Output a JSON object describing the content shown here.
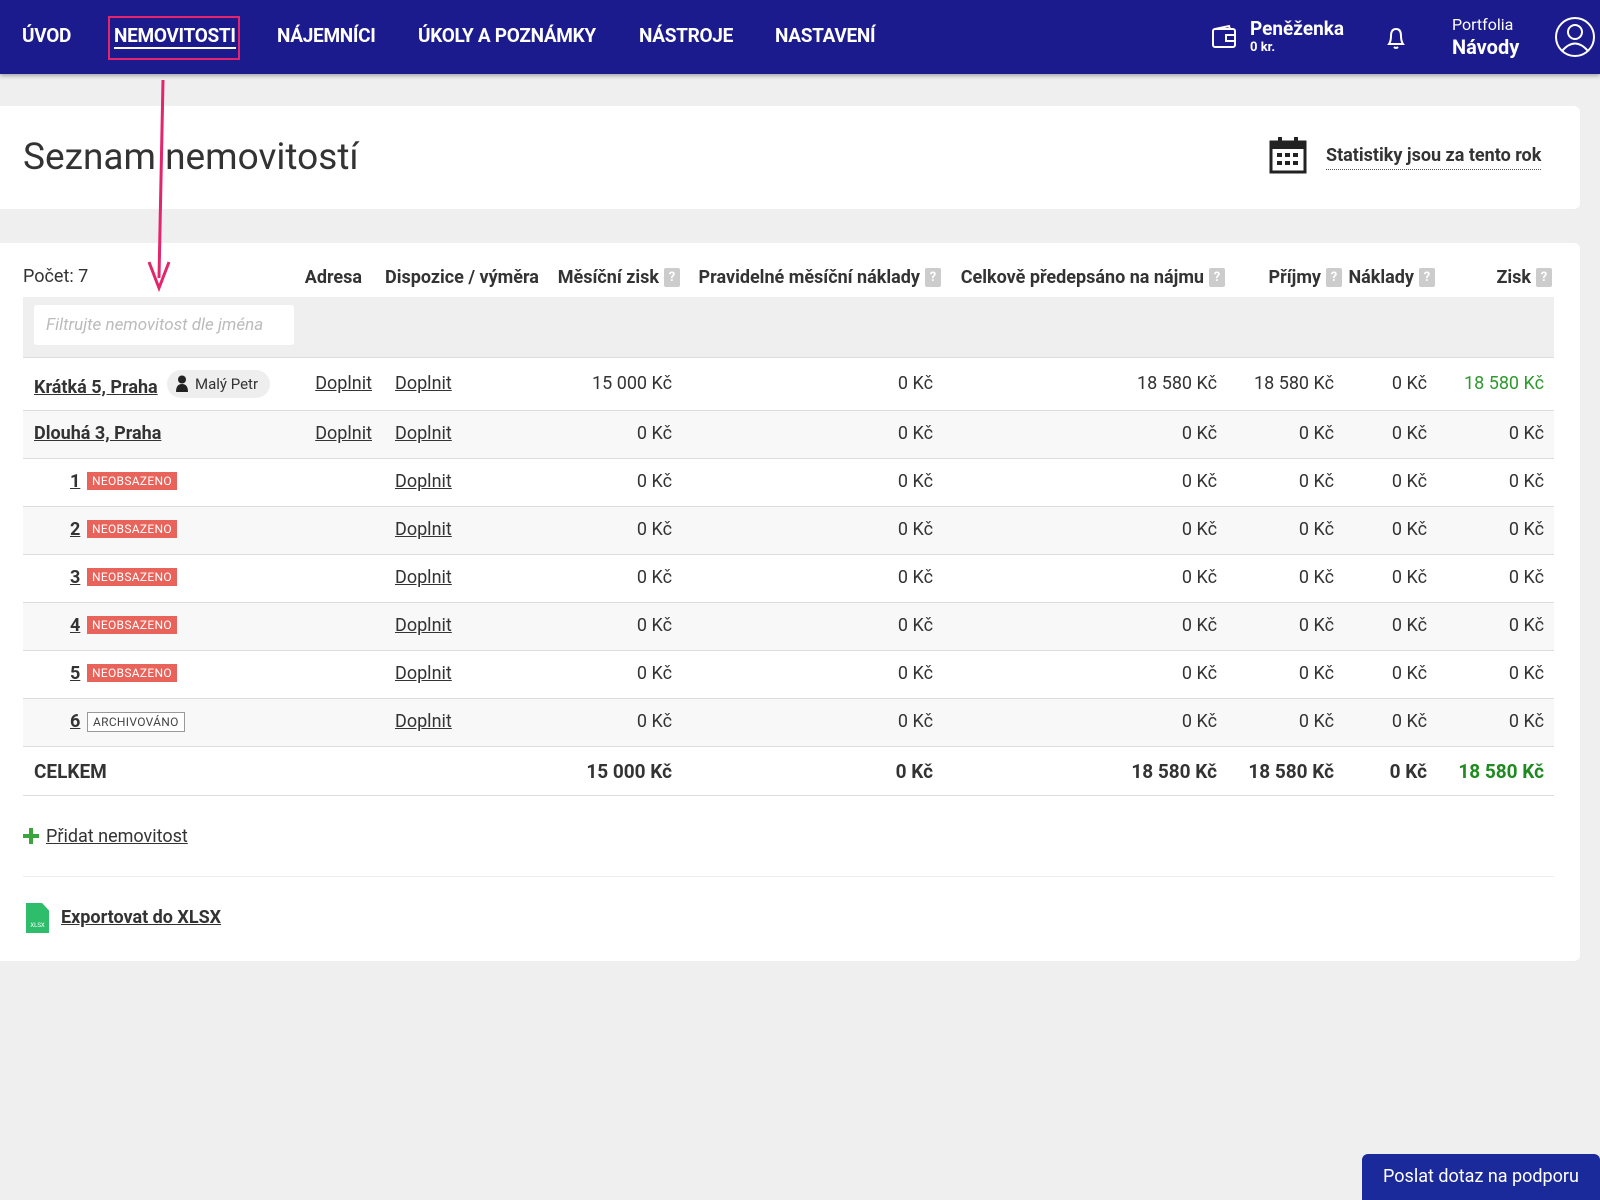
{
  "nav": {
    "items": [
      "ÚVOD",
      "NEMOVITOSTI",
      "NÁJEMNÍCI",
      "ÚKOLY A POZNÁMKY",
      "NÁSTROJE",
      "NASTAVENÍ"
    ],
    "active": 1,
    "wallet": {
      "title": "Peněženka",
      "amount": "0 kr."
    },
    "portfolio": {
      "label": "Portfolia",
      "name": "Návody"
    }
  },
  "header": {
    "title": "Seznam nemovitostí",
    "stats": "Statistiky jsou za tento rok"
  },
  "table": {
    "count": "Počet: 7",
    "help_icon": "?",
    "headers": [
      {
        "text": "Adresa"
      },
      {
        "text": "Dispozice / výměra"
      },
      {
        "text": "Měsíční zisk",
        "help": true
      },
      {
        "text": "Pravidelné měsíční náklady",
        "help": true
      },
      {
        "text": "Celkově předepsáno na nájmu",
        "help": true
      },
      {
        "text": "Příjmy",
        "help": true
      },
      {
        "text": "Náklady",
        "help": true
      },
      {
        "text": "Zisk",
        "help": true
      }
    ],
    "filter_placeholder": "Filtrujte nemovitost dle jména",
    "rows": [
      {
        "name": "Krátká 5, Praha",
        "tenant": "Malý Petr",
        "address": "Doplnit",
        "disposition": "Doplnit",
        "cells": [
          "15 000 Kč",
          "0 Kč",
          "18 580 Kč",
          "18 580 Kč",
          "0 Kč",
          "18 580 Kč"
        ],
        "profit_color": "#2e9a2e"
      },
      {
        "name": "Dlouhá 3, Praha",
        "address": "Doplnit",
        "disposition": "Doplnit",
        "cells": [
          "0 Kč",
          "0 Kč",
          "0 Kč",
          "0 Kč",
          "0 Kč",
          "0 Kč"
        ]
      },
      {
        "name": "1",
        "badge": "NEOBSAZENO",
        "disposition": "Doplnit",
        "cells": [
          "0 Kč",
          "0 Kč",
          "0 Kč",
          "0 Kč",
          "0 Kč",
          "0 Kč"
        ]
      },
      {
        "name": "2",
        "badge": "NEOBSAZENO",
        "disposition": "Doplnit",
        "cells": [
          "0 Kč",
          "0 Kč",
          "0 Kč",
          "0 Kč",
          "0 Kč",
          "0 Kč"
        ]
      },
      {
        "name": "3",
        "badge": "NEOBSAZENO",
        "disposition": "Doplnit",
        "cells": [
          "0 Kč",
          "0 Kč",
          "0 Kč",
          "0 Kč",
          "0 Kč",
          "0 Kč"
        ]
      },
      {
        "name": "4",
        "badge": "NEOBSAZENO",
        "disposition": "Doplnit",
        "cells": [
          "0 Kč",
          "0 Kč",
          "0 Kč",
          "0 Kč",
          "0 Kč",
          "0 Kč"
        ]
      },
      {
        "name": "5",
        "badge": "NEOBSAZENO",
        "disposition": "Doplnit",
        "cells": [
          "0 Kč",
          "0 Kč",
          "0 Kč",
          "0 Kč",
          "0 Kč",
          "0 Kč"
        ]
      },
      {
        "name": "6",
        "badge": "ARCHIVOVÁNO",
        "disposition": "Doplnit",
        "cells": [
          "0 Kč",
          "0 Kč",
          "0 Kč",
          "0 Kč",
          "0 Kč",
          "0 Kč"
        ]
      }
    ],
    "total": {
      "label": "CELKEM",
      "cells": [
        "15 000 Kč",
        "0 Kč",
        "18 580 Kč",
        "18 580 Kč",
        "0 Kč",
        "18 580 Kč"
      ],
      "profit_color": "#1f8a1f"
    }
  },
  "actions": {
    "add": "Přidat nemovitost",
    "export": "Exportovat do XLSX",
    "export_icon": "XLSX"
  },
  "support": "Poslat dotaz na podporu"
}
